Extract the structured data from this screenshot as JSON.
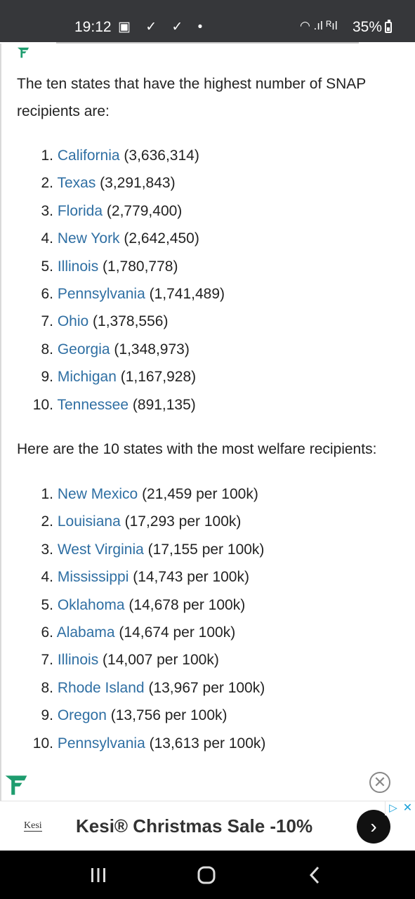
{
  "status_bar": {
    "time": "19:12",
    "left_icons": [
      "image-icon",
      "check-icon",
      "check-icon",
      "dot-icon"
    ],
    "left_icons_text": "▣ ✓ ✓ •",
    "right_icons_text": "◠ .ıl ᴿıl",
    "battery": "35%"
  },
  "article": {
    "intro_snap": "The ten states that have the highest number of SNAP recipients are:",
    "snap_list": [
      {
        "num": "1.",
        "state": "California",
        "value": "(3,636,314)"
      },
      {
        "num": "2.",
        "state": "Texas",
        "value": "(3,291,843)"
      },
      {
        "num": "3.",
        "state": "Florida",
        "value": "(2,779,400)"
      },
      {
        "num": "4.",
        "state": "New York",
        "value": "(2,642,450)"
      },
      {
        "num": "5.",
        "state": "Illinois",
        "value": "(1,780,778)"
      },
      {
        "num": "6.",
        "state": "Pennsylvania",
        "value": "(1,741,489)"
      },
      {
        "num": "7.",
        "state": "Ohio",
        "value": "(1,378,556)"
      },
      {
        "num": "8.",
        "state": "Georgia",
        "value": "(1,348,973)"
      },
      {
        "num": "9.",
        "state": "Michigan",
        "value": "(1,167,928)"
      },
      {
        "num": "10.",
        "state": "Tennessee",
        "value": "(891,135)"
      }
    ],
    "intro_welfare": "Here are the 10 states with the most welfare recipients:",
    "welfare_list": [
      {
        "num": "1.",
        "state": "New Mexico",
        "value": "(21,459 per 100k)"
      },
      {
        "num": "2.",
        "state": "Louisiana",
        "value": "(17,293 per 100k)"
      },
      {
        "num": "3.",
        "state": "West Virginia",
        "value": "(17,155 per 100k)"
      },
      {
        "num": "4.",
        "state": "Mississippi",
        "value": "(14,743 per 100k)"
      },
      {
        "num": "5.",
        "state": "Oklahoma",
        "value": "(14,678 per 100k)"
      },
      {
        "num": "6.",
        "state": "Alabama",
        "value": "(14,674 per 100k)"
      },
      {
        "num": "7.",
        "state": "Illinois",
        "value": "(14,007 per 100k)"
      },
      {
        "num": "8.",
        "state": "Rhode Island",
        "value": "(13,967 per 100k)"
      },
      {
        "num": "9.",
        "state": "Oregon",
        "value": "(13,756 per 100k)"
      },
      {
        "num": "10.",
        "state": "Pennsylvania",
        "value": "(13,613 per 100k)"
      }
    ]
  },
  "ad": {
    "logo_text": "Kesi",
    "headline": "Kesi® Christmas Sale -10%",
    "arrow": "›",
    "choices": "▷",
    "close": "✕"
  },
  "overlay": {
    "close": "✕"
  },
  "colors": {
    "link": "#2f6fa3",
    "status_bar": "#36373a",
    "ad_choices": "#1aa1d9",
    "logo_green": "#1d9c6e"
  }
}
